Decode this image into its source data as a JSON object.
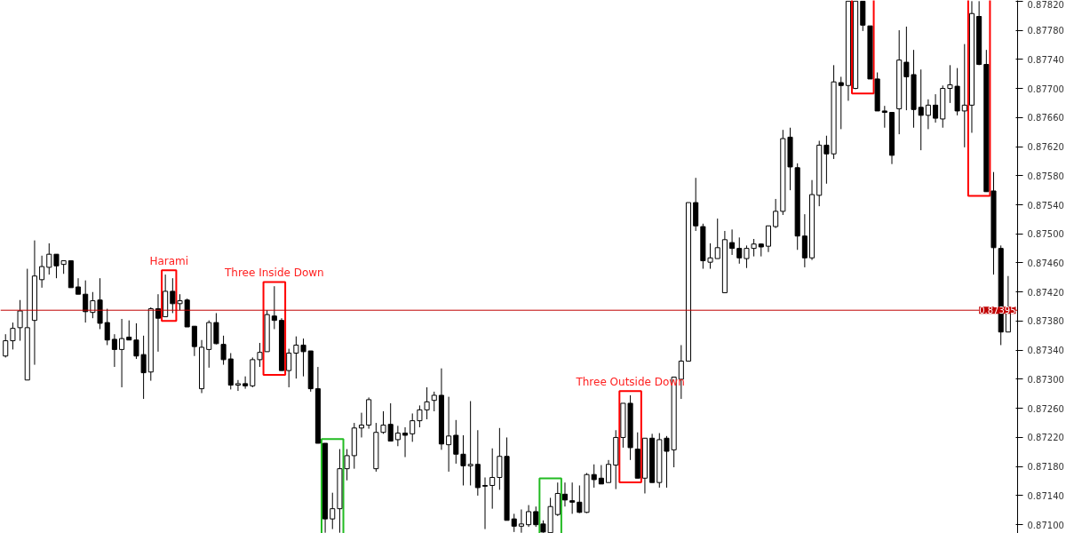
{
  "chart_data": {
    "type": "candlestick",
    "categories": [
      null,
      null,
      null,
      null,
      null,
      null,
      null,
      null,
      null,
      null,
      null,
      null,
      null,
      null,
      null,
      null,
      null,
      null,
      null,
      null,
      null,
      null,
      null,
      null,
      null,
      null,
      null,
      null,
      null,
      null,
      null,
      null,
      null,
      null,
      null,
      null,
      null,
      null,
      null,
      null,
      null,
      null,
      null,
      null,
      null,
      null,
      null,
      null,
      null,
      null,
      null,
      null,
      null,
      null,
      null,
      null,
      null,
      null,
      null,
      null,
      null,
      null,
      null,
      null,
      null,
      null,
      null,
      null,
      null,
      null,
      null,
      null,
      null,
      null,
      null,
      null,
      null,
      null,
      null,
      null,
      null,
      null,
      null,
      null,
      null,
      null,
      null,
      null,
      null,
      null,
      null,
      null,
      null,
      null,
      null,
      null,
      null,
      null,
      null,
      null,
      null,
      null,
      null,
      null,
      null,
      null,
      null,
      null,
      null,
      null,
      null,
      null,
      null,
      null,
      null,
      null,
      null,
      null,
      null,
      null,
      null,
      null,
      null,
      null,
      null,
      null,
      null,
      null,
      null,
      null,
      null,
      null,
      null,
      null,
      null,
      null,
      null,
      null,
      null
    ],
    "ohlc": [
      [
        0.87332,
        0.87362,
        0.8733,
        0.87353
      ],
      [
        0.87353,
        0.87378,
        0.87341,
        0.8737
      ],
      [
        0.87371,
        0.87409,
        0.87353,
        0.87394
      ],
      [
        0.87299,
        0.87452,
        0.87299,
        0.87371
      ],
      [
        0.87381,
        0.87491,
        0.8732,
        0.87442
      ],
      [
        0.87437,
        0.8747,
        0.87426,
        0.87455
      ],
      [
        0.87454,
        0.87487,
        0.87444,
        0.87472
      ],
      [
        0.87472,
        0.87472,
        0.87439,
        0.87456
      ],
      [
        0.87458,
        0.87463,
        0.87445,
        0.87463
      ],
      [
        0.87463,
        0.87463,
        0.87426,
        0.87426
      ],
      [
        0.87427,
        0.87439,
        0.87417,
        0.87417
      ],
      [
        0.87417,
        0.87436,
        0.87378,
        0.87393
      ],
      [
        0.87392,
        0.8742,
        0.87384,
        0.87408
      ],
      [
        0.87409,
        0.87439,
        0.87369,
        0.87377
      ],
      [
        0.87378,
        0.87397,
        0.87347,
        0.87354
      ],
      [
        0.87355,
        0.87362,
        0.87317,
        0.87341
      ],
      [
        0.87341,
        0.87383,
        0.87289,
        0.87356
      ],
      [
        0.87358,
        0.87381,
        0.87354,
        0.87354
      ],
      [
        0.87354,
        0.87377,
        0.87328,
        0.87332
      ],
      [
        0.87334,
        0.8736,
        0.87273,
        0.87309
      ],
      [
        0.8731,
        0.87399,
        0.87298,
        0.87397
      ],
      [
        0.87397,
        0.87417,
        0.87338,
        0.87384
      ],
      [
        0.87386,
        0.87444,
        0.87386,
        0.87421
      ],
      [
        0.87421,
        0.87439,
        0.87391,
        0.87404
      ],
      [
        0.87404,
        0.87417,
        0.87395,
        0.87408
      ],
      [
        0.87409,
        0.87411,
        0.87372,
        0.87372
      ],
      [
        0.87373,
        0.87373,
        0.87332,
        0.87345
      ],
      [
        0.87287,
        0.87354,
        0.87281,
        0.87344
      ],
      [
        0.87341,
        0.87381,
        0.87316,
        0.87378
      ],
      [
        0.87378,
        0.87391,
        0.87348,
        0.87349
      ],
      [
        0.87348,
        0.8736,
        0.8732,
        0.87327
      ],
      [
        0.87328,
        0.87336,
        0.87286,
        0.87292
      ],
      [
        0.87292,
        0.87299,
        0.87284,
        0.87294
      ],
      [
        0.87294,
        0.87304,
        0.87287,
        0.87291
      ],
      [
        0.87291,
        0.8733,
        0.87289,
        0.87327
      ],
      [
        0.87327,
        0.8735,
        0.87317,
        0.87337
      ],
      [
        0.87338,
        0.87395,
        0.87338,
        0.87389
      ],
      [
        0.87387,
        0.87428,
        0.87369,
        0.87381
      ],
      [
        0.87381,
        0.87384,
        0.87312,
        0.87312
      ],
      [
        0.87312,
        0.87342,
        0.87289,
        0.87336
      ],
      [
        0.87336,
        0.87359,
        0.87301,
        0.87347
      ],
      [
        0.87347,
        0.87356,
        0.87304,
        0.87338
      ],
      [
        0.87339,
        0.87339,
        0.87283,
        0.87287
      ],
      [
        0.87287,
        0.87317,
        0.87212,
        0.87212
      ],
      [
        0.87212,
        0.87212,
        0.87089,
        0.87108
      ],
      [
        0.87108,
        0.87144,
        0.87094,
        0.87122
      ],
      [
        0.87122,
        0.87204,
        0.87089,
        0.87177
      ],
      [
        0.87177,
        0.87204,
        0.87161,
        0.87195
      ],
      [
        0.87195,
        0.8724,
        0.87177,
        0.87233
      ],
      [
        0.87233,
        0.87254,
        0.8722,
        0.87237
      ],
      [
        0.87237,
        0.87275,
        0.87232,
        0.87272
      ],
      [
        0.87177,
        0.8724,
        0.87173,
        0.87227
      ],
      [
        0.87227,
        0.87256,
        0.87225,
        0.87237
      ],
      [
        0.87238,
        0.87267,
        0.87215,
        0.87215
      ],
      [
        0.87217,
        0.87236,
        0.87208,
        0.87226
      ],
      [
        0.87226,
        0.87234,
        0.87193,
        0.87223
      ],
      [
        0.87225,
        0.87253,
        0.87214,
        0.87243
      ],
      [
        0.87243,
        0.87264,
        0.87234,
        0.87258
      ],
      [
        0.87258,
        0.87289,
        0.87245,
        0.87269
      ],
      [
        0.87271,
        0.87283,
        0.87256,
        0.87278
      ],
      [
        0.87278,
        0.87315,
        0.87203,
        0.87211
      ],
      [
        0.8721,
        0.87276,
        0.87173,
        0.87222
      ],
      [
        0.87223,
        0.87244,
        0.87184,
        0.87197
      ],
      [
        0.87197,
        0.87223,
        0.87154,
        0.87181
      ],
      [
        0.87181,
        0.8727,
        0.87154,
        0.87183
      ],
      [
        0.87183,
        0.8723,
        0.8714,
        0.87151
      ],
      [
        0.87154,
        0.87165,
        0.87094,
        0.87153
      ],
      [
        0.87154,
        0.87205,
        0.87122,
        0.87165
      ],
      [
        0.87165,
        0.87233,
        0.87148,
        0.87194
      ],
      [
        0.87194,
        0.8722,
        0.87106,
        0.87106
      ],
      [
        0.87108,
        0.87115,
        0.8709,
        0.87098
      ],
      [
        0.87098,
        0.87121,
        0.87089,
        0.87101
      ],
      [
        0.871,
        0.87127,
        0.87097,
        0.87118
      ],
      [
        0.87118,
        0.87125,
        0.87097,
        0.871
      ],
      [
        0.87101,
        0.87106,
        0.87089,
        0.8709
      ],
      [
        0.87089,
        0.87137,
        0.87089,
        0.87125
      ],
      [
        0.87114,
        0.87158,
        0.87112,
        0.87143
      ],
      [
        0.87142,
        0.87158,
        0.87125,
        0.87134
      ],
      [
        0.87133,
        0.87158,
        0.87115,
        0.87131
      ],
      [
        0.87131,
        0.87154,
        0.87116,
        0.87117
      ],
      [
        0.87117,
        0.87171,
        0.87116,
        0.87169
      ],
      [
        0.87169,
        0.87183,
        0.87151,
        0.87162
      ],
      [
        0.87164,
        0.87182,
        0.87156,
        0.87156
      ],
      [
        0.87158,
        0.87189,
        0.87158,
        0.87183
      ],
      [
        0.87182,
        0.8723,
        0.87149,
        0.8722
      ],
      [
        0.8722,
        0.87267,
        0.87206,
        0.87267
      ],
      [
        0.87267,
        0.87278,
        0.87189,
        0.87206
      ],
      [
        0.87204,
        0.87227,
        0.87164,
        0.87164
      ],
      [
        0.87164,
        0.87219,
        0.87143,
        0.87219
      ],
      [
        0.87219,
        0.87225,
        0.87158,
        0.87158
      ],
      [
        0.87158,
        0.87226,
        0.87151,
        0.87217
      ],
      [
        0.87219,
        0.87222,
        0.87151,
        0.87201
      ],
      [
        0.87203,
        0.87303,
        0.87179,
        0.87303
      ],
      [
        0.873,
        0.87347,
        0.87273,
        0.87325
      ],
      [
        0.87325,
        0.87543,
        0.87325,
        0.87543
      ],
      [
        0.87543,
        0.87577,
        0.87504,
        0.87511
      ],
      [
        0.8751,
        0.87514,
        0.87452,
        0.87463
      ],
      [
        0.87461,
        0.87487,
        0.87452,
        0.87467
      ],
      [
        0.87466,
        0.87521,
        0.87466,
        0.87481
      ],
      [
        0.87419,
        0.87504,
        0.87419,
        0.87492
      ],
      [
        0.87488,
        0.87506,
        0.87471,
        0.8748
      ],
      [
        0.8748,
        0.87495,
        0.87459,
        0.87467
      ],
      [
        0.87466,
        0.87484,
        0.87453,
        0.8748
      ],
      [
        0.8748,
        0.87493,
        0.87469,
        0.87486
      ],
      [
        0.87486,
        0.87487,
        0.87469,
        0.87482
      ],
      [
        0.87483,
        0.87511,
        0.87475,
        0.87511
      ],
      [
        0.8751,
        0.87548,
        0.87508,
        0.87531
      ],
      [
        0.87531,
        0.87643,
        0.87526,
        0.87631
      ],
      [
        0.87633,
        0.87646,
        0.8756,
        0.87592
      ],
      [
        0.87591,
        0.87597,
        0.87478,
        0.87497
      ],
      [
        0.87497,
        0.87527,
        0.87454,
        0.87467
      ],
      [
        0.87467,
        0.87574,
        0.87464,
        0.87554
      ],
      [
        0.87553,
        0.87628,
        0.87538,
        0.87622
      ],
      [
        0.87622,
        0.87635,
        0.87569,
        0.8761
      ],
      [
        0.8761,
        0.87732,
        0.87603,
        0.87709
      ],
      [
        0.87708,
        0.87716,
        0.87644,
        0.87704
      ],
      [
        0.87704,
        0.8782,
        0.87683,
        0.8782
      ],
      [
        0.877,
        0.8782,
        0.87699,
        0.8782
      ],
      [
        0.8782,
        0.8782,
        0.87779,
        0.87787
      ],
      [
        0.87786,
        0.87786,
        0.87713,
        0.87713
      ],
      [
        0.87713,
        0.87722,
        0.87669,
        0.87669
      ],
      [
        0.87669,
        0.87676,
        0.87646,
        0.87667
      ],
      [
        0.87667,
        0.87667,
        0.87596,
        0.87608
      ],
      [
        0.87672,
        0.8778,
        0.87637,
        0.87739
      ],
      [
        0.87736,
        0.87785,
        0.8767,
        0.87716
      ],
      [
        0.87719,
        0.87753,
        0.87646,
        0.87671
      ],
      [
        0.87674,
        0.87726,
        0.87615,
        0.87663
      ],
      [
        0.87663,
        0.87685,
        0.87644,
        0.87677
      ],
      [
        0.87677,
        0.87692,
        0.87653,
        0.87659
      ],
      [
        0.87658,
        0.87704,
        0.87646,
        0.877
      ],
      [
        0.877,
        0.87732,
        0.8768,
        0.87705
      ],
      [
        0.87703,
        0.87728,
        0.87663,
        0.87669
      ],
      [
        0.87669,
        0.87761,
        0.87619,
        0.87677
      ],
      [
        0.87677,
        0.8782,
        0.87639,
        0.87803
      ],
      [
        0.87799,
        0.8782,
        0.87732,
        0.87733
      ],
      [
        0.87733,
        0.87753,
        0.87558,
        0.87558
      ],
      [
        0.87559,
        0.87585,
        0.87444,
        0.87481
      ],
      [
        0.8748,
        0.87484,
        0.87347,
        0.87365
      ],
      [
        0.87365,
        0.87442,
        0.87365,
        0.87395
      ]
    ],
    "ylim": [
      0.87088,
      0.87821
    ],
    "yticks": [
      {
        "value": 0.871,
        "label": "0.87100"
      },
      {
        "value": 0.8714,
        "label": "0.87140"
      },
      {
        "value": 0.8718,
        "label": "0.87180"
      },
      {
        "value": 0.8722,
        "label": "0.87220"
      },
      {
        "value": 0.8726,
        "label": "0.87260"
      },
      {
        "value": 0.873,
        "label": "0.87300"
      },
      {
        "value": 0.8734,
        "label": "0.87340"
      },
      {
        "value": 0.8738,
        "label": "0.87380"
      },
      {
        "value": 0.8742,
        "label": "0.87420"
      },
      {
        "value": 0.8746,
        "label": "0.87460"
      },
      {
        "value": 0.875,
        "label": "0.87500"
      },
      {
        "value": 0.8754,
        "label": "0.87540"
      },
      {
        "value": 0.8758,
        "label": "0.87580"
      },
      {
        "value": 0.8762,
        "label": "0.87620"
      },
      {
        "value": 0.8766,
        "label": "0.87660"
      },
      {
        "value": 0.877,
        "label": "0.87700"
      },
      {
        "value": 0.8774,
        "label": "0.87740"
      },
      {
        "value": 0.8778,
        "label": "0.87780"
      },
      {
        "value": 0.8782,
        "label": "0.87820"
      }
    ],
    "ref_lines": [
      {
        "axis": "y",
        "value": 0.87395,
        "label": "0.87395",
        "color": "#c00000"
      }
    ],
    "annotations": [
      "Harami",
      "Three Inside Down",
      "Three Outside Down"
    ],
    "tick_labels": "y",
    "grid": false
  }
}
